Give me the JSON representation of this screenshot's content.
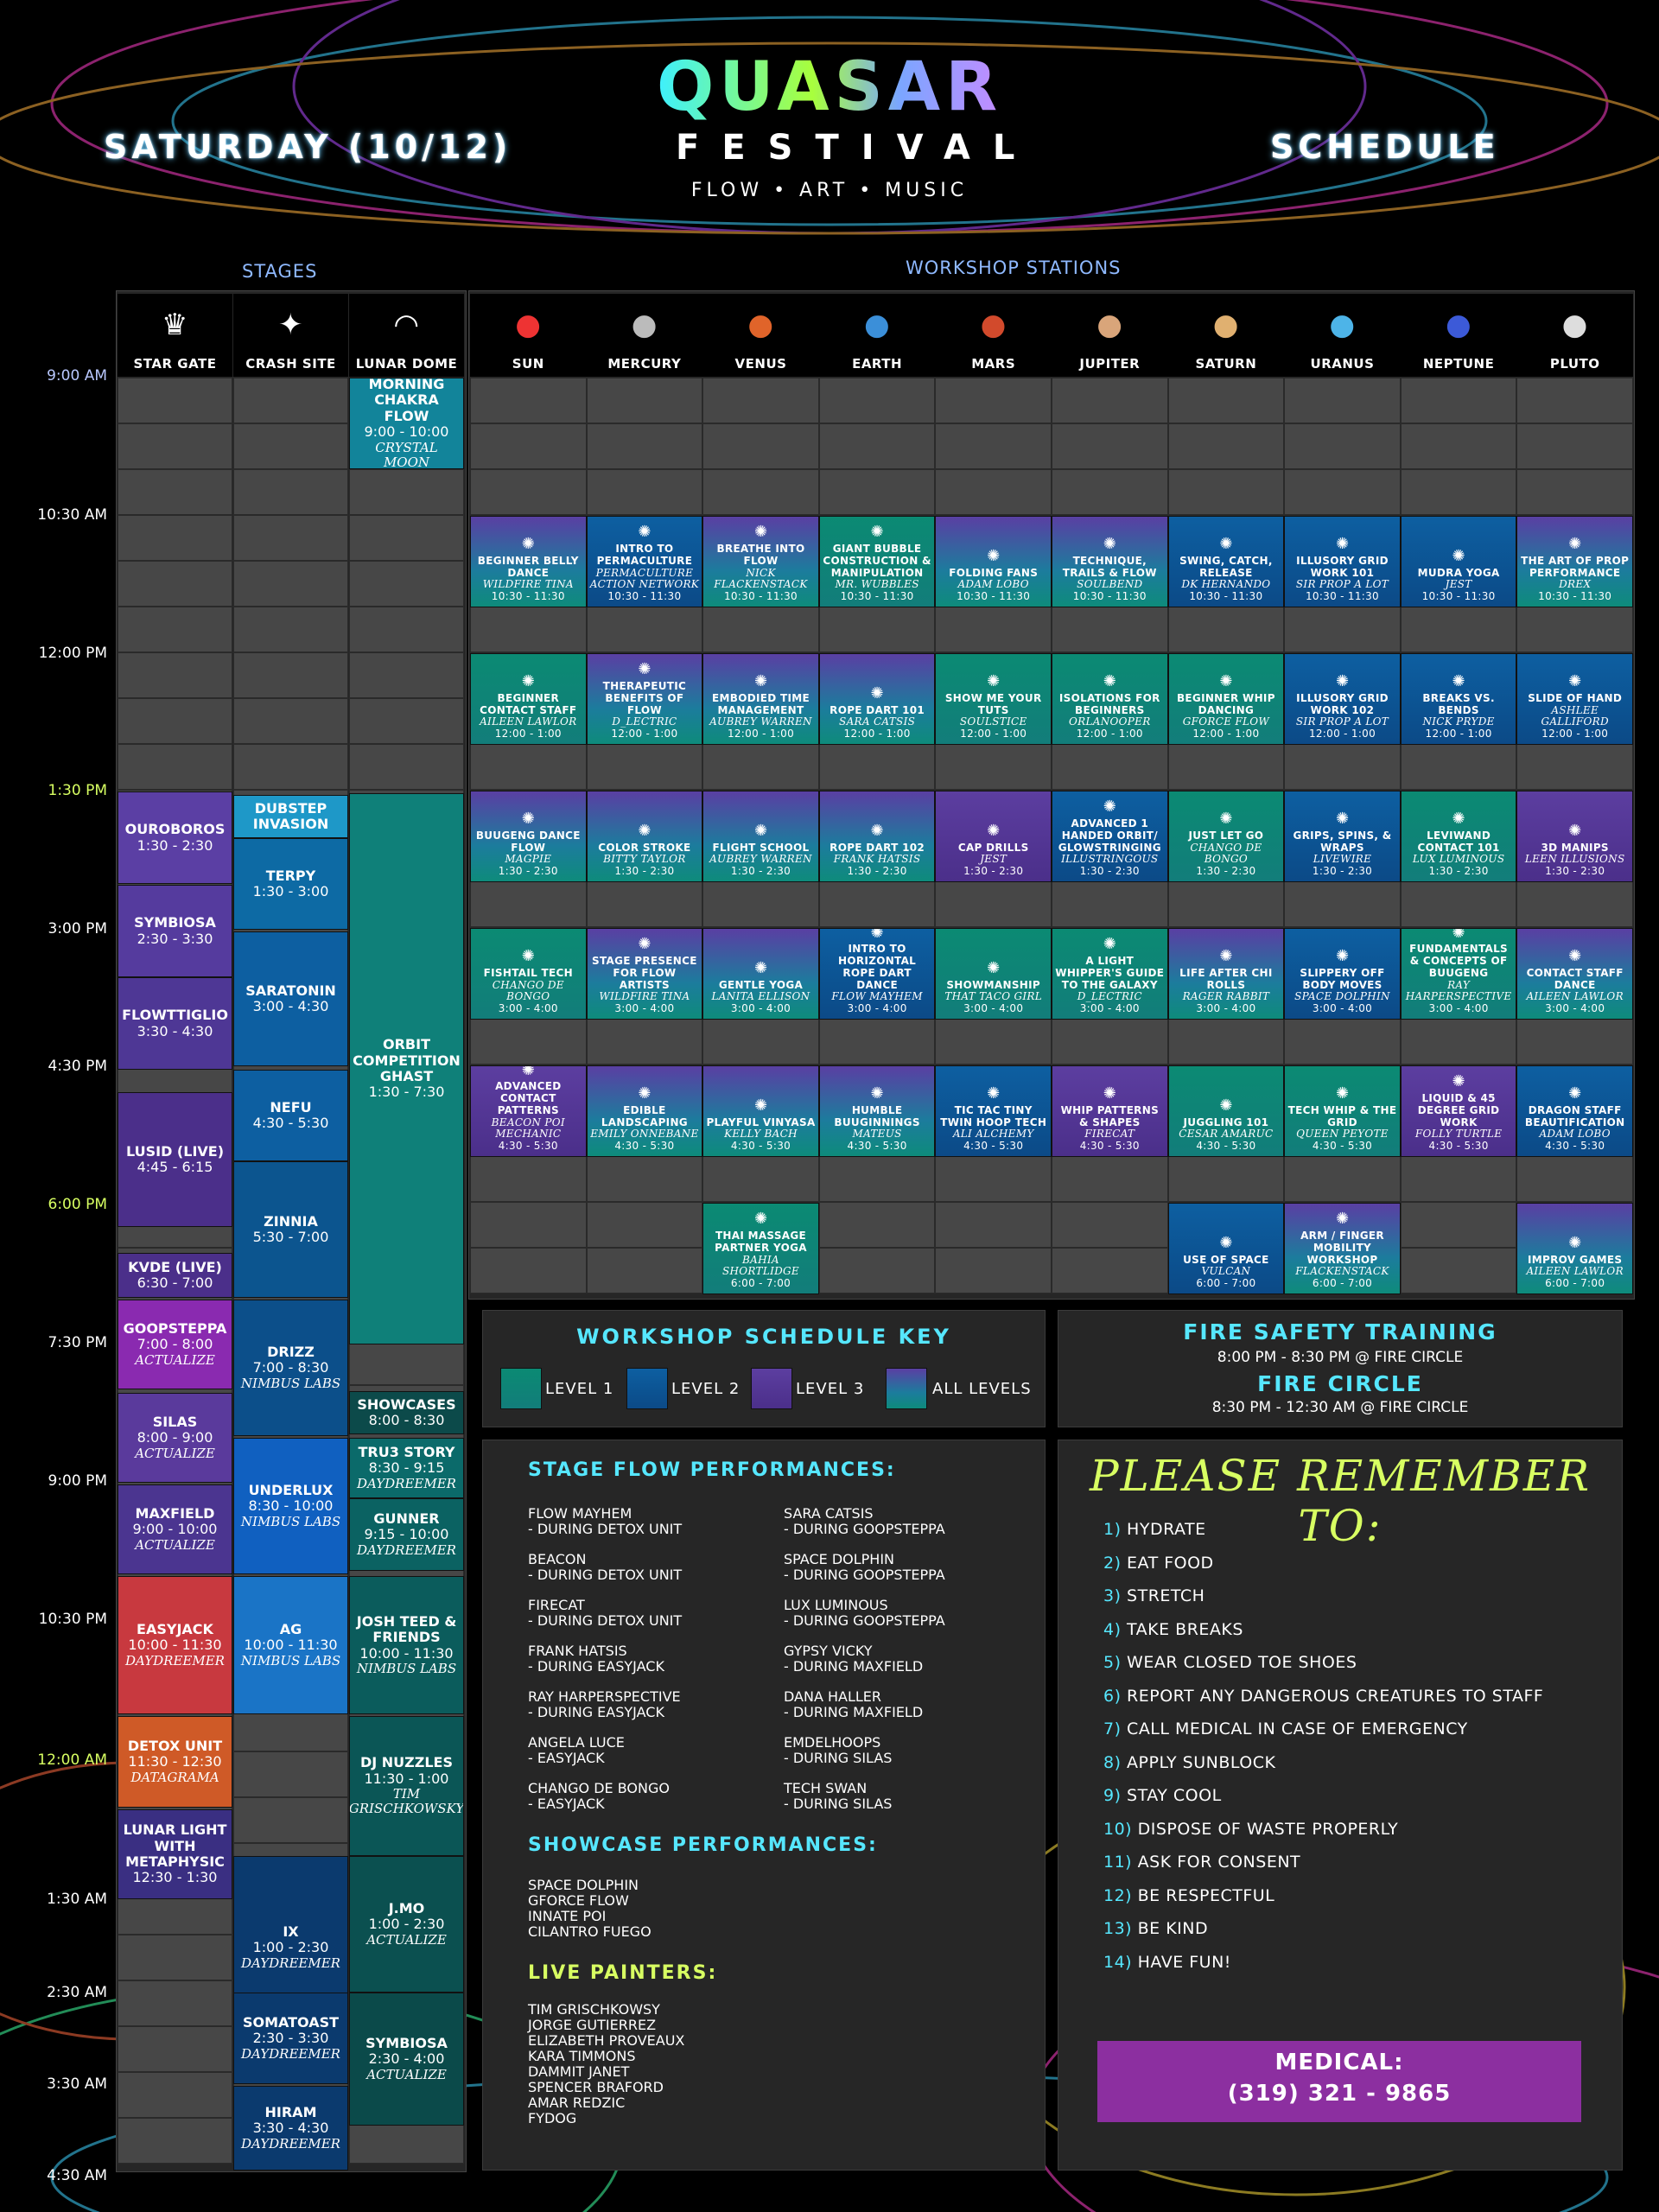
{
  "header": {
    "day": "SATURDAY (10/12)",
    "logo_main": "QUASAR",
    "logo_sub": "FESTIVAL",
    "tagline": "FLOW • ART • MUSIC",
    "right": "SCHEDULE"
  },
  "sections": {
    "stages": "STAGES",
    "workshops": "WORKSHOP STATIONS"
  },
  "stage_columns": [
    "STAR GATE",
    "CRASH SITE",
    "LUNAR DOME"
  ],
  "workshop_columns": [
    "SUN",
    "MERCURY",
    "VENUS",
    "EARTH",
    "MARS",
    "JUPITER",
    "SATURN",
    "URANUS",
    "NEPTUNE",
    "PLUTO"
  ],
  "times": [
    "9:00 AM",
    "10:30 AM",
    "12:00 PM",
    "1:30 PM",
    "3:00 PM",
    "4:30 PM",
    "6:00 PM",
    "7:30 PM",
    "9:00 PM",
    "10:30 PM",
    "12:00 AM",
    "1:30 AM",
    "2:30 AM",
    "3:30 AM",
    "4:30 AM"
  ],
  "stage_events": [
    {
      "col": 0,
      "title": "OUROBOROS",
      "time": "1:30 - 2:30"
    },
    {
      "col": 0,
      "title": "SYMBIOSA",
      "time": "2:30 - 3:30"
    },
    {
      "col": 0,
      "title": "FLowTTiGlio",
      "time": "3:30 - 4:30"
    },
    {
      "col": 0,
      "title": "LuSiD (Live)",
      "time": "4:45 - 6:15"
    },
    {
      "col": 0,
      "title": "KVDE (Live)",
      "time": "6:30 - 7:00"
    },
    {
      "col": 0,
      "title": "GOOPSTEPPA",
      "time": "7:00 - 8:00",
      "host": "ACTUALIZE"
    },
    {
      "col": 0,
      "title": "SILAS",
      "time": "8:00 - 9:00",
      "host": "ACTUALIZE"
    },
    {
      "col": 0,
      "title": "MAXFIELD",
      "time": "9:00 - 10:00",
      "host": "ACTUALIZE"
    },
    {
      "col": 0,
      "title": "EASYJACK",
      "time": "10:00 - 11:30",
      "host": "DAYDREEMER"
    },
    {
      "col": 0,
      "title": "DETOX UNIT",
      "time": "11:30 - 12:30",
      "host": "DATAGRAMA"
    },
    {
      "col": 0,
      "title": "LUNAR LIGHT with METAPHYSIC",
      "time": "12:30 - 1:30"
    },
    {
      "col": 1,
      "title": "DUBSTEP INVASION"
    },
    {
      "col": 1,
      "title": "TERPY",
      "time": "1:30 - 3:00"
    },
    {
      "col": 1,
      "title": "SARATONIN",
      "time": "3:00 - 4:30"
    },
    {
      "col": 1,
      "title": "NEFU",
      "time": "4:30 - 5:30"
    },
    {
      "col": 1,
      "title": "ZINNIA",
      "time": "5:30 - 7:00"
    },
    {
      "col": 1,
      "title": "DRIZZ",
      "time": "7:00 - 8:30",
      "host": "NIMBUS LABS"
    },
    {
      "col": 1,
      "title": "UNDERLUX",
      "time": "8:30 - 10:00",
      "host": "NIMBUS LABS"
    },
    {
      "col": 1,
      "title": "AG",
      "time": "10:00 - 11:30",
      "host": "NIMBUS LABS"
    },
    {
      "col": 1,
      "title": "iX",
      "time": "1:00 - 2:30",
      "host": "DAYDREEMER"
    },
    {
      "col": 1,
      "title": "SOMATOAST",
      "time": "2:30 - 3:30",
      "host": "DAYDREEMER"
    },
    {
      "col": 1,
      "title": "HIRAM",
      "time": "3:30 - 4:30",
      "host": "DAYDREEMER"
    },
    {
      "col": 2,
      "title": "MORNING CHAKRA FLOW",
      "time": "9:00 - 10:00",
      "host": "CRYSTAL MOON"
    },
    {
      "col": 2,
      "title": "ORBIT COMPETITION GHAST",
      "time": "1:30 - 7:30"
    },
    {
      "col": 2,
      "title": "SHOWCASES",
      "time": "8:00 - 8:30"
    },
    {
      "col": 2,
      "title": "TRU3 STORY",
      "time": "8:30 - 9:15",
      "host": "DAYDREEMER"
    },
    {
      "col": 2,
      "title": "GUNNER",
      "time": "9:15 - 10:00",
      "host": "DAYDREEMER"
    },
    {
      "col": 2,
      "title": "JOSH TEED & FRIENDS",
      "time": "10:00 - 11:30",
      "host": "NIMBUS LABS"
    },
    {
      "col": 2,
      "title": "DJ NUZZLES",
      "time": "11:30 - 1:00",
      "host": "TIM GRISCHKOWSKY"
    },
    {
      "col": 2,
      "title": "J.Mo",
      "time": "1:00 - 2:30",
      "host": "ACTUALIZE"
    },
    {
      "col": 2,
      "title": "SYMBIOSA",
      "time": "2:30 - 4:00",
      "host": "ACTUALIZE"
    }
  ],
  "workshops": [
    {
      "col": 0,
      "slot": 0,
      "level": "all",
      "title": "BEGINNER BELLY DANCE",
      "host": "WILDFIRE TINA",
      "time": "10:30 - 11:30"
    },
    {
      "col": 1,
      "slot": 0,
      "level": "2",
      "title": "INTRO TO PERMACULTURE",
      "host": "PERMACULTURE ACTION NETWORK",
      "time": "10:30 - 11:30"
    },
    {
      "col": 2,
      "slot": 0,
      "level": "all",
      "title": "BREATHE INTO FLOW",
      "host": "NICK FLACKENSTACK",
      "time": "10:30 - 11:30"
    },
    {
      "col": 3,
      "slot": 0,
      "level": "1",
      "title": "GIANT BUBBLE CONSTRUCTION & MANIPULATION",
      "host": "MR. WUBBLES",
      "time": "10:30 - 11:30"
    },
    {
      "col": 4,
      "slot": 0,
      "level": "all",
      "title": "FOLDING FANS",
      "host": "ADAM LOBO",
      "time": "10:30 - 11:30"
    },
    {
      "col": 5,
      "slot": 0,
      "level": "all",
      "title": "TECHNIQUE, TRAILS & FLOW",
      "host": "SOULBEND",
      "time": "10:30 - 11:30"
    },
    {
      "col": 6,
      "slot": 0,
      "level": "2",
      "title": "SWING, CATCH, RELEASE",
      "host": "DK HERNANDO",
      "time": "10:30 - 11:30"
    },
    {
      "col": 7,
      "slot": 0,
      "level": "2",
      "title": "ILLUSORY GRID WORK 101",
      "host": "SIR PROP A LOT",
      "time": "10:30 - 11:30"
    },
    {
      "col": 8,
      "slot": 0,
      "level": "2",
      "title": "MUDRA YOGA",
      "host": "JEST",
      "time": "10:30 - 11:30"
    },
    {
      "col": 9,
      "slot": 0,
      "level": "all",
      "title": "THE ART OF PROP PERFORMANCE",
      "host": "DREX",
      "time": "10:30 - 11:30"
    },
    {
      "col": 0,
      "slot": 1,
      "level": "1",
      "title": "BEGINNER CONTACT STAFF",
      "host": "AILEEN LAWLOR",
      "time": "12:00 - 1:00"
    },
    {
      "col": 1,
      "slot": 1,
      "level": "all",
      "title": "THERAPEUTIC BENEFITS OF FLOW",
      "host": "D_LECTRIC",
      "time": "12:00 - 1:00"
    },
    {
      "col": 2,
      "slot": 1,
      "level": "all",
      "title": "EMBODIED TIME MANAGEMENT",
      "host": "AUBREY WARREN",
      "time": "12:00 - 1:00"
    },
    {
      "col": 3,
      "slot": 1,
      "level": "all",
      "title": "ROPE DART 101",
      "host": "SARA CATSIS",
      "time": "12:00 - 1:00"
    },
    {
      "col": 4,
      "slot": 1,
      "level": "1",
      "title": "SHOW ME YOUR TUTS",
      "host": "SOULSTICE",
      "time": "12:00 - 1:00"
    },
    {
      "col": 5,
      "slot": 1,
      "level": "1",
      "title": "ISOLATIONS FOR BEGINNERS",
      "host": "ORLANOOPER",
      "time": "12:00 - 1:00"
    },
    {
      "col": 6,
      "slot": 1,
      "level": "1",
      "title": "BEGINNER WHIP DANCING",
      "host": "GFORCE FLOW",
      "time": "12:00 - 1:00"
    },
    {
      "col": 7,
      "slot": 1,
      "level": "2",
      "title": "ILLUSORY GRID WORK 102",
      "host": "SIR PROP A LOT",
      "time": "12:00 - 1:00"
    },
    {
      "col": 8,
      "slot": 1,
      "level": "2",
      "title": "BREAKS VS. BENDS",
      "host": "NICK PRYDE",
      "time": "12:00 - 1:00"
    },
    {
      "col": 9,
      "slot": 1,
      "level": "2",
      "title": "SLIDE OF HAND",
      "host": "ASHLEE GALLIFORD",
      "time": "12:00 - 1:00"
    },
    {
      "col": 0,
      "slot": 2,
      "level": "all",
      "title": "BUUGENG DANCE FLOW",
      "host": "MAGPIE",
      "time": "1:30 - 2:30"
    },
    {
      "col": 1,
      "slot": 2,
      "level": "all",
      "title": "COLOR STROKE",
      "host": "BITTY TAYLOR",
      "time": "1:30 - 2:30"
    },
    {
      "col": 2,
      "slot": 2,
      "level": "all",
      "title": "FLIGHT SCHOOL",
      "host": "AUBREY WARREN",
      "time": "1:30 - 2:30"
    },
    {
      "col": 3,
      "slot": 2,
      "level": "all",
      "title": "ROPE DART 102",
      "host": "FRANK HATSIS",
      "time": "1:30 - 2:30"
    },
    {
      "col": 4,
      "slot": 2,
      "level": "3",
      "title": "CAP DRILLS",
      "host": "JEST",
      "time": "1:30 - 2:30"
    },
    {
      "col": 5,
      "slot": 2,
      "level": "2",
      "title": "ADVANCED 1 HANDED ORBIT/ GLOWSTRINGING",
      "host": "ILLUSTRINGOUS",
      "time": "1:30 - 2:30"
    },
    {
      "col": 6,
      "slot": 2,
      "level": "1",
      "title": "JUST LET GO",
      "host": "CHANGO DE BONGO",
      "time": "1:30 - 2:30"
    },
    {
      "col": 7,
      "slot": 2,
      "level": "2",
      "title": "GRIPS, SPINS, & WRAPS",
      "host": "LIVEWIRE",
      "time": "1:30 - 2:30"
    },
    {
      "col": 8,
      "slot": 2,
      "level": "1",
      "title": "LEVIWAND CONTACT 101",
      "host": "LUX LUMINOUS",
      "time": "1:30 - 2:30"
    },
    {
      "col": 9,
      "slot": 2,
      "level": "3",
      "title": "3D MANIPS",
      "host": "LEEN ILLUSIONS",
      "time": "1:30 - 2:30"
    },
    {
      "col": 0,
      "slot": 3,
      "level": "1",
      "title": "FISHTAIL TECH",
      "host": "CHANGO DE BONGO",
      "time": "3:00 - 4:00"
    },
    {
      "col": 1,
      "slot": 3,
      "level": "all",
      "title": "STAGE PRESENCE FOR FLOW ARTISTS",
      "host": "WILDFIRE TINA",
      "time": "3:00 - 4:00"
    },
    {
      "col": 2,
      "slot": 3,
      "level": "all",
      "title": "GENTLE YOGA",
      "host": "LANITA ELLISON",
      "time": "3:00 - 4:00"
    },
    {
      "col": 3,
      "slot": 3,
      "level": "2",
      "title": "INTRO TO HORIZONTAL ROPE DART DANCE",
      "host": "FLOW MAYHEM",
      "time": "3:00 - 4:00"
    },
    {
      "col": 4,
      "slot": 3,
      "level": "1",
      "title": "SHOWMANSHIP",
      "host": "THAT TACO GIRL",
      "time": "3:00 - 4:00"
    },
    {
      "col": 5,
      "slot": 3,
      "level": "1",
      "title": "A LIGHT WHIPPER's GUIDE TO THE GALAXY",
      "host": "D_LECTRIC",
      "time": "3:00 - 4:00"
    },
    {
      "col": 6,
      "slot": 3,
      "level": "all",
      "title": "LIFE AFTER CHI ROLLS",
      "host": "RAGER RABBIT",
      "time": "3:00 - 4:00"
    },
    {
      "col": 7,
      "slot": 3,
      "level": "2",
      "title": "SLIPPERY OFF BODY MOVES",
      "host": "SPACE DOLPHIN",
      "time": "3:00 - 4:00"
    },
    {
      "col": 8,
      "slot": 3,
      "level": "1",
      "title": "FUNDAMENTALS & CONCEPTS OF BUUGENG",
      "host": "RAY HARPERSPECTIVE",
      "time": "3:00 - 4:00"
    },
    {
      "col": 9,
      "slot": 3,
      "level": "all",
      "title": "CONTACT STAFF DANCE",
      "host": "AILEEN LAWLOR",
      "time": "3:00 - 4:00"
    },
    {
      "col": 0,
      "slot": 4,
      "level": "3",
      "title": "ADVANCED CONTACT PATTERNS",
      "host": "BEACON POI MECHANIC",
      "time": "4:30 - 5:30"
    },
    {
      "col": 1,
      "slot": 4,
      "level": "all",
      "title": "EDIBLE LANDSCAPING",
      "host": "EMILY ONNEBANE",
      "time": "4:30 - 5:30"
    },
    {
      "col": 2,
      "slot": 4,
      "level": "all",
      "title": "PLAYFUL VINYASA",
      "host": "KELLY BACH",
      "time": "4:30 - 5:30"
    },
    {
      "col": 3,
      "slot": 4,
      "level": "all",
      "title": "HUMBLE BUuGINNINGS",
      "host": "MATEUS",
      "time": "4:30 - 5:30"
    },
    {
      "col": 4,
      "slot": 4,
      "level": "2",
      "title": "TIC TAC TINY TWIN HOOP TECH",
      "host": "ALI ALCHEMY",
      "time": "4:30 - 5:30"
    },
    {
      "col": 5,
      "slot": 4,
      "level": "3",
      "title": "WHIP PATTERNS & SHAPES",
      "host": "FIRECAT",
      "time": "4:30 - 5:30"
    },
    {
      "col": 6,
      "slot": 4,
      "level": "1",
      "title": "JUGGLING 101",
      "host": "CESAR AMARUC",
      "time": "4:30 - 5:30"
    },
    {
      "col": 7,
      "slot": 4,
      "level": "1",
      "title": "TECH WHIP & THE GRID",
      "host": "QUEEN PEYOTE",
      "time": "4:30 - 5:30"
    },
    {
      "col": 8,
      "slot": 4,
      "level": "3",
      "title": "LIQUID & 45 DEGREE GRID WORK",
      "host": "FOLLY TURTLE",
      "time": "4:30 - 5:30"
    },
    {
      "col": 9,
      "slot": 4,
      "level": "2",
      "title": "DRAGON STAFF BEAUTIFICATION",
      "host": "ADAM LOBO",
      "time": "4:30 - 5:30"
    },
    {
      "col": 2,
      "slot": 5,
      "level": "1",
      "title": "THAI MASSAGE PARTNER YOGA",
      "host": "BAHIA SHORTLIDGE",
      "time": "6:00 - 7:00"
    },
    {
      "col": 6,
      "slot": 5,
      "level": "2",
      "title": "USE OF SPACE",
      "host": "VULCAN",
      "time": "6:00 - 7:00"
    },
    {
      "col": 7,
      "slot": 5,
      "level": "all",
      "title": "ARM / FINGER MOBILITY WORKSHOP",
      "host": "FLACKENSTACK",
      "time": "6:00 - 7:00"
    },
    {
      "col": 9,
      "slot": 5,
      "level": "all",
      "title": "IMPROV GAMES",
      "host": "AILEEN LAWLOR",
      "time": "6:00 - 7:00"
    }
  ],
  "key": {
    "title": "WORKSHOP SCHEDULE KEY",
    "levels": [
      "LEVEL 1",
      "LEVEL 2",
      "LEVEL 3",
      "ALL LEVELS"
    ]
  },
  "fire": {
    "title1": "FIRE SAFETY TRAINING",
    "line1": "8:00 PM - 8:30 PM @ FIRE CIRCLE",
    "title2": "FIRE CIRCLE",
    "line2": "8:30 PM - 12:30 AM @ FIRE CIRCLE"
  },
  "performances": {
    "stage_title": "STAGE FLOW PERFORMANCES:",
    "stage_left": [
      [
        "FLOW MAYHEM",
        "- DURING DETOX UNIT"
      ],
      [
        "BEACON",
        "- DURING DETOX UNIT"
      ],
      [
        "FIRECAT",
        "- DURING DETOX UNIT"
      ],
      [
        "FRANK HATSIS",
        "- DURING EASYJACK"
      ],
      [
        "RAY HARPERSPECTIVE",
        "- DURING EASYJACK"
      ],
      [
        "ANGELA LUCE",
        "- EASYJACK"
      ],
      [
        "CHANGO DE BONGO",
        "- EASYJACK"
      ]
    ],
    "stage_right": [
      [
        "SARA CATSIS",
        "- DURING GOOPSTEPPA"
      ],
      [
        "SPACE DOLPHIN",
        "- DURING GOOPSTEPPA"
      ],
      [
        "LUX LUMINOUS",
        "- DURING GOOPSTEPPA"
      ],
      [
        "GYPSY VICKY",
        "- DURING MAXFIELD"
      ],
      [
        "DANA HALLER",
        "- DURING MAXFIELD"
      ],
      [
        "EMDELHOOPS",
        "- DURING SILAS"
      ],
      [
        "TECH SWAN",
        "- DURING SILAS"
      ]
    ],
    "showcase_title": "SHOWCASE PERFORMANCES:",
    "showcase": [
      "SPACE DOLPHIN",
      "GFORCE FLOW",
      "INNATE POI",
      "CILANTRO FUEGO"
    ],
    "painters_title": "LIVE PAINTERS:",
    "painters": [
      "TIM GRISCHKOWSY",
      "JORGE GUTIERREZ",
      "ELIZABETH PROVEAUX",
      "KARA TIMMONS",
      "DAMMIT JANET",
      "SPENCER BRAFORD",
      "AMAR REDZIC",
      "FYDOG"
    ]
  },
  "remember": {
    "title": "PLEASE REMEMBER TO:",
    "items": [
      "HYDRATE",
      "EAT FOOD",
      "STRETCH",
      "TAKE BREAKS",
      "WEAR CLOSED TOE SHOES",
      "REPORT ANY DANGEROUS CREATURES TO STAFF",
      "CALL MEDICAL IN CASE OF EMERGENCY",
      "APPLY SUNBLOCK",
      "STAY COOL",
      "DISPOSE OF WASTE PROPERLY",
      "ASK FOR CONSENT",
      "BE RESPECTFUL",
      "BE KIND",
      "HAVE FUN!"
    ]
  },
  "medical": {
    "label": "MEDICAL:",
    "phone": "(319) 321 - 9865"
  },
  "colors": {
    "level1": "#0b8a73",
    "level2": "#0d5fa1",
    "level3": "#5c3ea0",
    "accent": "#56e7ff",
    "highlight": "#d8ff62",
    "medical": "#8c2fa0"
  }
}
